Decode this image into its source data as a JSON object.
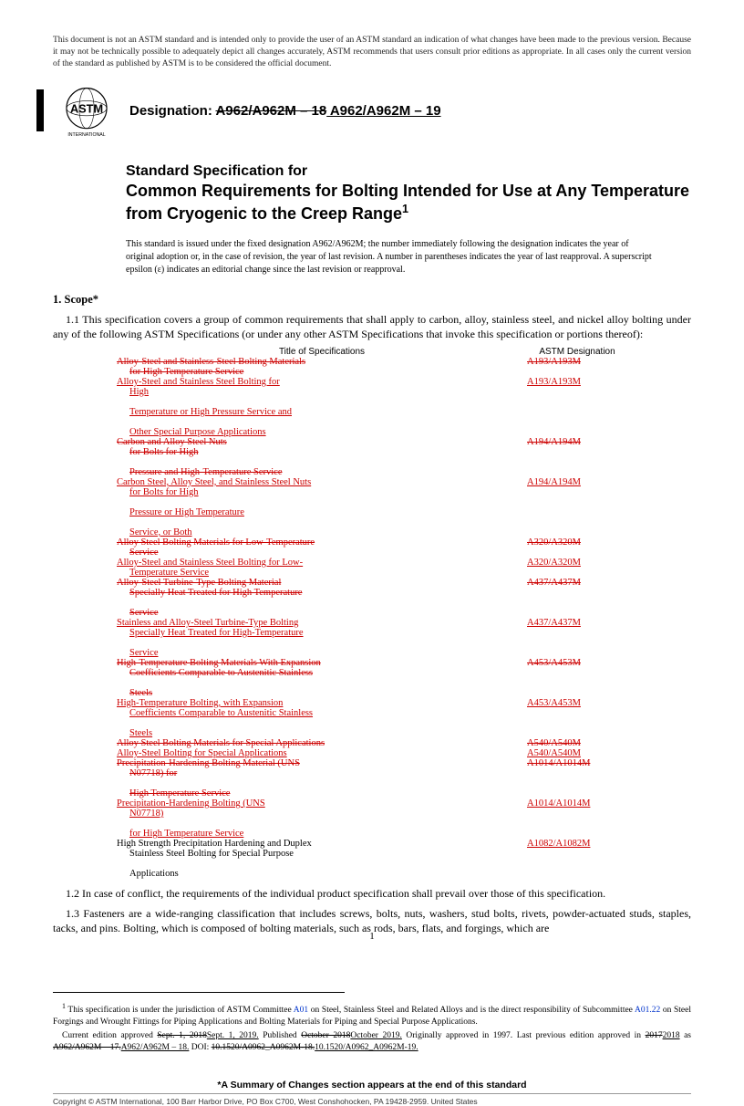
{
  "disclaimer": "This document is not an ASTM standard and is intended only to provide the user of an ASTM standard an indication of what changes have been made to the previous version. Because it may not be technically possible to adequately depict all changes accurately, ASTM recommends that users consult prior editions as appropriate. In all cases only the current version of the standard as published by ASTM is to be considered the official document.",
  "logo_text_top": "ASTM",
  "logo_text_bottom": "INTERNATIONAL",
  "designation_label": "Designation: ",
  "designation_old": "A962/A962M – 18",
  "designation_new": " A962/A962M – 19",
  "title_prefix": "Standard Specification for",
  "title_main": "Common Requirements for Bolting Intended for Use at Any Temperature from Cryogenic to the Creep Range",
  "issued_note_l1": "This standard is issued under the fixed designation A962/A962M; the number immediately following the designation indicates the year of original adoption or, in the case of revision, the year of last revision. A number in parentheses indicates the year of last reapproval. A superscript epsilon (ε) indicates an editorial change since the last revision or reapproval.",
  "scope_heading": "1. Scope*",
  "p11": "1.1 This specification covers a group of common requirements that shall apply to carbon, alloy, stainless steel, and nickel alloy bolting under any of the following ASTM Specifications (or under any other ASTM Specifications that invoke this specification or portions thereof):",
  "table_header_left": "Title of Specifications",
  "table_header_right": "ASTM Designation",
  "rows": [
    {
      "t": [
        "Alloy-Steel and Stainless-Steel Bolting Materials",
        "for High Temperature Service"
      ],
      "d": "A193/A193M",
      "del": true
    },
    {
      "t": [
        "Alloy-Steel and Stainless Steel Bolting for",
        "High",
        "Temperature or High Pressure Service and",
        "Other Special Purpose Applications"
      ],
      "d": "A193/A193M",
      "del": false
    },
    {
      "t": [
        "Carbon and Alloy Steel Nuts",
        "for Bolts for High",
        "Pressure and High-Temperature Service"
      ],
      "d": "A194/A194M",
      "del": true
    },
    {
      "t": [
        "Carbon Steel, Alloy Steel, and Stainless Steel Nuts",
        "for Bolts for High",
        "Pressure or High Temperature",
        "Service, or Both"
      ],
      "d": "A194/A194M",
      "del": false
    },
    {
      "t": [
        "Alloy Steel Bolting Materials for Low-Temperature",
        "Service"
      ],
      "d": "A320/A320M",
      "del": true
    },
    {
      "t": [
        "Alloy-Steel and Stainless Steel Bolting for Low-",
        "Temperature Service"
      ],
      "d": "A320/A320M",
      "del": false
    },
    {
      "t": [
        "Alloy-Steel Turbine-Type Bolting Material",
        "Specially Heat Treated for High Temperature",
        "Service"
      ],
      "d": "A437/A437M",
      "del": true
    },
    {
      "t": [
        "Stainless and Alloy-Steel Turbine-Type Bolting",
        "Specially Heat Treated for High-Temperature",
        "Service"
      ],
      "d": "A437/A437M",
      "del": false
    },
    {
      "t": [
        "High-Temperature Bolting Materials With Expansion",
        "Coefficients Comparable to Austenitic Stainless",
        "Steels"
      ],
      "d": "A453/A453M",
      "del": true
    },
    {
      "t": [
        "High-Temperature Bolting, with Expansion",
        "Coefficients Comparable to Austenitic Stainless",
        "Steels"
      ],
      "d": "A453/A453M",
      "del": false
    },
    {
      "t": [
        "Alloy Steel Bolting Materials for Special Applications"
      ],
      "d": "A540/A540M",
      "del": true
    },
    {
      "t": [
        "Alloy-Steel Bolting for Special Applications"
      ],
      "d": "A540/A540M",
      "del": false
    },
    {
      "t": [
        "Precipitation-Hardening Bolting Material (UNS",
        "N07718) for",
        "High Temperature Service"
      ],
      "d": "A1014/A1014M",
      "del": true
    },
    {
      "t": [
        "Precipitation-Hardening Bolting (UNS",
        "N07718)",
        "for High Temperature Service"
      ],
      "d": "A1014/A1014M",
      "del": false
    },
    {
      "t": [
        "High Strength Precipitation Hardening and Duplex",
        "Stainless Steel Bolting for Special Purpose",
        "Applications"
      ],
      "d": "A1082/A1082M",
      "del": false,
      "plain": true
    }
  ],
  "p12": "1.2 In case of conflict, the requirements of the individual product specification shall prevail over those of this specification.",
  "p13": "1.3 Fasteners are a wide-ranging classification that includes screws, bolts, nuts, washers, stud bolts, rivets, powder-actuated studs, staples, tacks, and pins. Bolting, which is composed of bolting materials, such as rods, bars, flats, and forgings, which are",
  "fn1_a": "This specification is under the jurisdiction of ASTM Committee ",
  "fn1_link1": "A01",
  "fn1_b": " on Steel, Stainless Steel and Related Alloys and is the direct responsibility of Subcommittee ",
  "fn1_link2": "A01.22",
  "fn1_c": " on Steel Forgings and Wrought Fittings for Piping Applications and Bolting Materials for Piping and Special Purpose Applications.",
  "fn2_a": "Current edition approved ",
  "fn2_old1": "Sept. 1, 2018",
  "fn2_new1": "Sept. 1, 2019.",
  "fn2_b": " Published ",
  "fn2_old2": "October 2018",
  "fn2_new2": "October 2019.",
  "fn2_c": " Originally approved in 1997. Last previous edition approved in ",
  "fn2_old3": "2017",
  "fn2_new3": "2018",
  "fn2_d": " as ",
  "fn2_old4": "A962/A962M – 17.",
  "fn2_new4": "A962/A962M – 18.",
  "fn2_e": " DOI: ",
  "fn2_old5": "10.1520/A0962_A0962M-18.",
  "fn2_new5": "10.1520/A0962_A0962M-19.",
  "summary_line": "*A Summary of Changes section appears at the end of this standard",
  "copyright": "Copyright © ASTM International, 100 Barr Harbor Drive, PO Box C700, West Conshohocken, PA 19428-2959. United States",
  "pagenum": "1"
}
